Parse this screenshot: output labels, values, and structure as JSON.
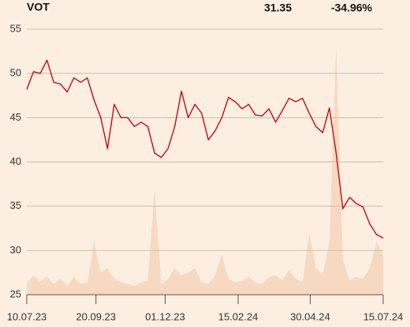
{
  "chart_data": {
    "type": "line",
    "title": "VOT",
    "last_price": 31.35,
    "change": "-34.96%",
    "x": [
      "10.07.23",
      "17.07.23",
      "24.07.23",
      "31.07.23",
      "07.08.23",
      "14.08.23",
      "21.08.23",
      "28.08.23",
      "04.09.23",
      "11.09.23",
      "18.09.23",
      "25.09.23",
      "02.10.23",
      "09.10.23",
      "16.10.23",
      "23.10.23",
      "30.10.23",
      "06.11.23",
      "13.11.23",
      "20.11.23",
      "27.11.23",
      "04.12.23",
      "11.12.23",
      "18.12.23",
      "25.12.23",
      "01.01.24",
      "08.01.24",
      "15.01.24",
      "22.01.24",
      "29.01.24",
      "05.02.24",
      "12.02.24",
      "19.02.24",
      "26.02.24",
      "04.03.24",
      "11.03.24",
      "18.03.24",
      "25.03.24",
      "01.04.24",
      "08.04.24",
      "15.04.24",
      "22.04.24",
      "29.04.24",
      "06.05.24",
      "13.05.24",
      "20.05.24",
      "27.05.24",
      "03.06.24",
      "10.06.24",
      "17.06.24",
      "24.06.24",
      "01.07.24",
      "08.07.24",
      "15.07.24"
    ],
    "series": [
      {
        "color": "#cc0a0a",
        "values": [
          48.2,
          50.2,
          50,
          51.5,
          49,
          48.8,
          47.9,
          49.5,
          49,
          49.5,
          47,
          45,
          41.5,
          46.5,
          45,
          45,
          44,
          44.5,
          44,
          41,
          40.5,
          41.5,
          44,
          48,
          45,
          46.5,
          45.5,
          42.5,
          43.5,
          45,
          47.3,
          46.8,
          46,
          46.5,
          45.3,
          45.2,
          46,
          44.5,
          45.8,
          47.2,
          46.8,
          47.2,
          45.5,
          44,
          43.3,
          46.1,
          41,
          34.7,
          36,
          35.3,
          34.9,
          33,
          31.8,
          31.4
        ]
      },
      {
        "color": "#f7d9c2",
        "axis": "y2",
        "values": [
          12,
          22,
          15,
          20,
          12,
          18,
          10,
          20,
          12,
          14,
          60,
          25,
          30,
          18,
          14,
          12,
          10,
          14,
          16,
          120,
          12,
          18,
          30,
          22,
          25,
          30,
          14,
          12,
          22,
          45,
          18,
          14,
          16,
          20,
          14,
          12,
          20,
          22,
          16,
          28,
          18,
          14,
          70,
          30,
          22,
          60,
          280,
          40,
          16,
          20,
          18,
          30,
          60,
          45
        ]
      }
    ],
    "xlim": [
      "10.07.23",
      "15.07.24"
    ],
    "xticks": [
      "10.07.23",
      "20.09.23",
      "01.12.23",
      "15.02.24",
      "30.04.24",
      "15.07.24"
    ],
    "ylim": [
      25,
      55
    ],
    "yticks": [
      25,
      30,
      35,
      40,
      45,
      50,
      55
    ],
    "y2lim": [
      0,
      300
    ],
    "grid": true,
    "change_color": "#c00000"
  }
}
